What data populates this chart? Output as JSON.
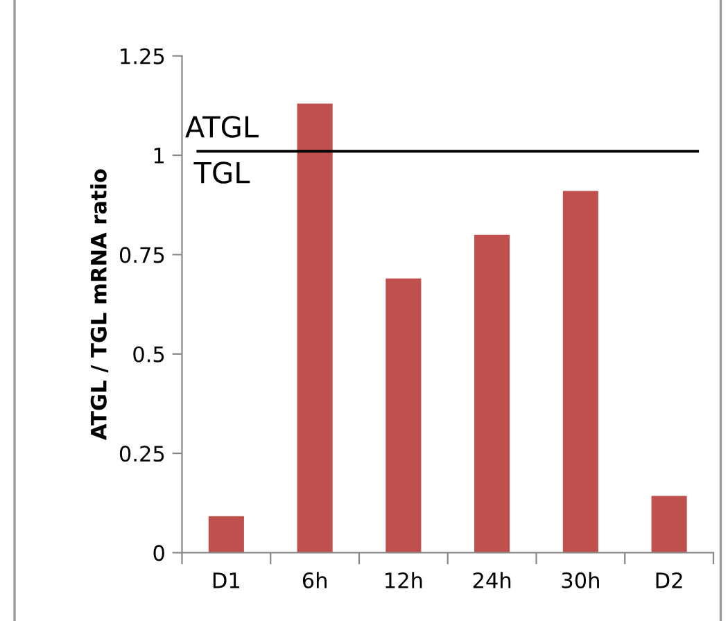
{
  "chart_data": {
    "type": "bar",
    "ylabel": "ATGL / TGL mRNA ratio",
    "categories": [
      "D1",
      "6h",
      "12h",
      "24h",
      "30h",
      "D2"
    ],
    "values": [
      0.092,
      1.13,
      0.69,
      0.8,
      0.91,
      0.143
    ],
    "color": "#c0504d",
    "ylim": [
      0,
      1.25
    ],
    "yticks": [
      0,
      0.25,
      0.5,
      0.75,
      1,
      1.25
    ],
    "grid": false,
    "legend": false,
    "ref_lines": [
      {
        "axis": "y",
        "value": 1.01,
        "color": "#000000"
      }
    ],
    "annotations": [
      "ATGL",
      "TGL"
    ]
  }
}
